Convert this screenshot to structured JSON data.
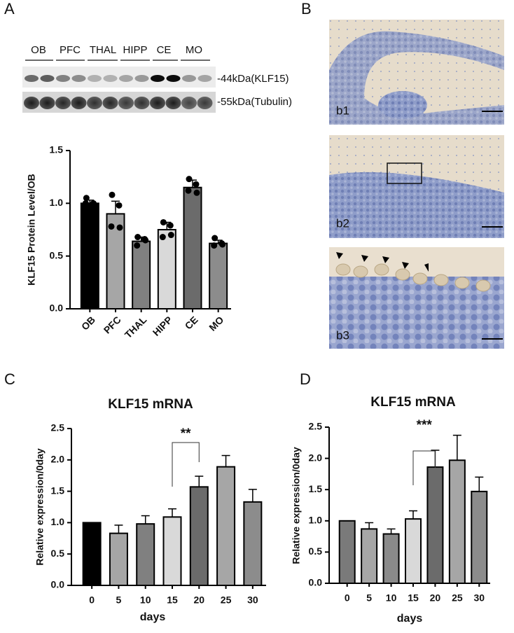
{
  "panels": {
    "a": "A",
    "b": "B",
    "c": "C",
    "d": "D"
  },
  "blot": {
    "groups": [
      "OB",
      "PFC",
      "THAL",
      "HIPP",
      "CE",
      "MO"
    ],
    "bands": [
      "-44kDa(KLF15)",
      "-55kDa(Tubulin)"
    ]
  },
  "histology": {
    "labels": [
      "b1",
      "b2",
      "b3"
    ]
  },
  "chart_data": [
    {
      "type": "bar",
      "y_label": "KLF15 Protein Level/OB",
      "categories": [
        "OB",
        "PFC",
        "THAL",
        "HIPP",
        "CE",
        "MO"
      ],
      "values": [
        1.0,
        0.9,
        0.64,
        0.75,
        1.15,
        0.62
      ],
      "errors": [
        0.03,
        0.12,
        0.04,
        0.07,
        0.07,
        0.03
      ],
      "points": [
        [
          1.05,
          1.0,
          1.0,
          0.99
        ],
        [
          1.08,
          0.98,
          0.78,
          0.77
        ],
        [
          0.68,
          0.66,
          0.6,
          0.65
        ],
        [
          0.82,
          0.79,
          0.68,
          0.7
        ],
        [
          1.23,
          1.18,
          1.12,
          1.1
        ],
        [
          0.67,
          0.62,
          0.6,
          0.61
        ]
      ],
      "colors": [
        "#000000",
        "#a6a6a6",
        "#808080",
        "#d9d9d9",
        "#6b6b6b",
        "#8c8c8c"
      ],
      "ylim": [
        0,
        1.5
      ],
      "yticks": [
        {
          "value": 0,
          "label": "0.0"
        },
        0.5,
        {
          "value": 1,
          "label": "1.0"
        },
        1.5
      ]
    },
    {
      "type": "bar",
      "title": "KLF15 mRNA",
      "x_label": "days",
      "y_label": "Relative expression/0day",
      "categories": [
        "0",
        "5",
        "10",
        "15",
        "20",
        "25",
        "30"
      ],
      "values": [
        1.0,
        0.83,
        0.98,
        1.09,
        1.57,
        1.89,
        1.33
      ],
      "errors": [
        0,
        0.13,
        0.13,
        0.13,
        0.17,
        0.18,
        0.2
      ],
      "colors": [
        "#000000",
        "#a6a6a6",
        "#808080",
        "#d9d9d9",
        "#6b6b6b",
        "#a6a6a6",
        "#8c8c8c"
      ],
      "ylim": [
        0,
        2.5
      ],
      "yticks": [
        {
          "value": 0,
          "label": "0.0"
        },
        0.5,
        {
          "value": 1,
          "label": "1.0"
        },
        1.5,
        {
          "value": 2,
          "label": "2.0"
        },
        2.5
      ],
      "annotation": "**"
    },
    {
      "type": "bar",
      "title": "KLF15 mRNA",
      "x_label": "days",
      "y_label": "Relative expression/0day",
      "categories": [
        "0",
        "5",
        "10",
        "15",
        "20",
        "25",
        "30"
      ],
      "values": [
        1.0,
        0.87,
        0.79,
        1.03,
        1.86,
        1.97,
        1.47
      ],
      "errors": [
        0,
        0.1,
        0.08,
        0.13,
        0.27,
        0.4,
        0.23
      ],
      "colors": [
        "#7a7a7a",
        "#a6a6a6",
        "#8a8a8a",
        "#d9d9d9",
        "#6b6b6b",
        "#a6a6a6",
        "#8c8c8c"
      ],
      "ylim": [
        0,
        2.5
      ],
      "yticks": [
        {
          "value": 0,
          "label": "0.0"
        },
        0.5,
        {
          "value": 1,
          "label": "1.0"
        },
        1.5,
        {
          "value": 2,
          "label": "2.0"
        },
        2.5
      ],
      "annotation": "***"
    }
  ]
}
